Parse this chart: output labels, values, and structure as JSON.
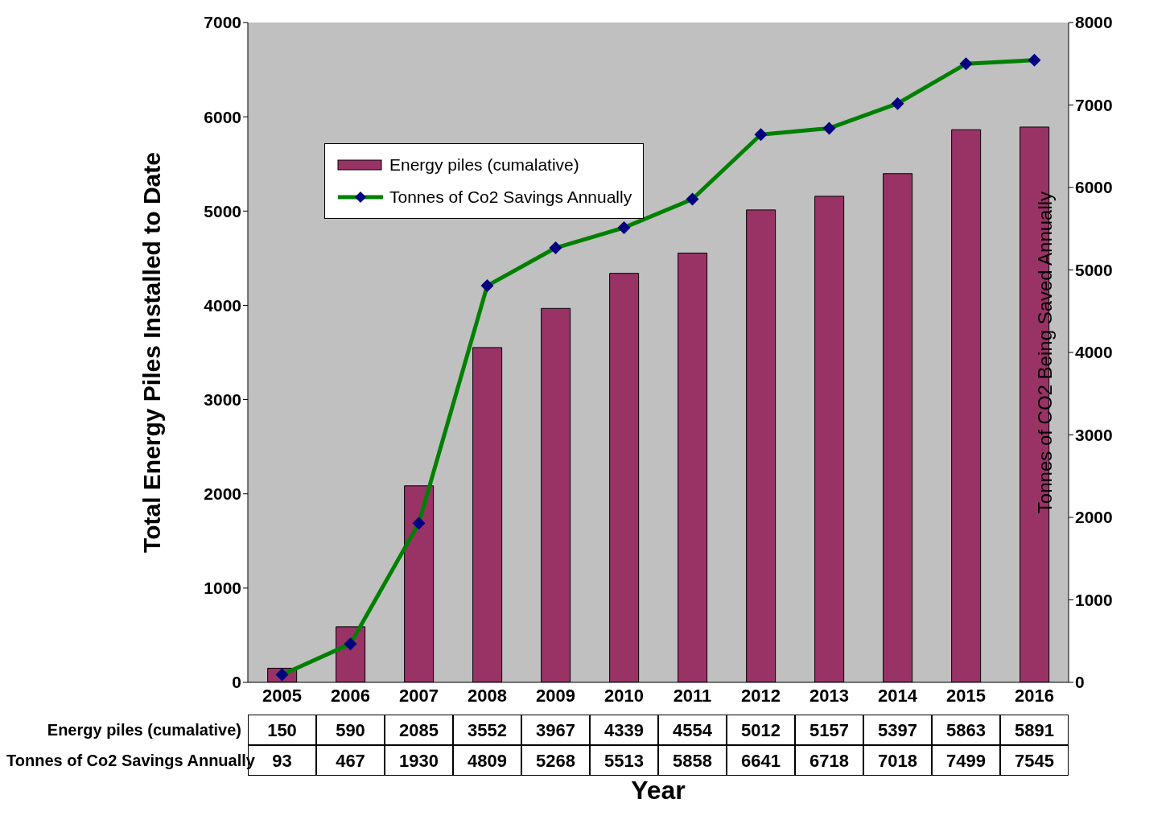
{
  "chart_data": {
    "type": "bar",
    "xlabel": "Year",
    "ylabel": "Total Energy Piles Installed to Date",
    "y2label": "Tonnes of CO2 Being Saved Annually",
    "categories": [
      "2005",
      "2006",
      "2007",
      "2008",
      "2009",
      "2010",
      "2011",
      "2012",
      "2013",
      "2014",
      "2015",
      "2016"
    ],
    "series": [
      {
        "name": "Energy piles (cumalative)",
        "color": "#993366",
        "values": [
          150,
          590,
          2085,
          3552,
          3967,
          4339,
          4554,
          5012,
          5157,
          5397,
          5863,
          5891
        ]
      },
      {
        "name": "Tonnes of Co2 Savings Annually",
        "type": "line",
        "axis": "y2",
        "color": "#008000",
        "marker": "diamond",
        "values": [
          93,
          467,
          1930,
          4809,
          5268,
          5513,
          5858,
          6641,
          6718,
          7018,
          7499,
          7545
        ]
      }
    ],
    "ylim": [
      0,
      7000
    ],
    "yticks": [
      0,
      1000,
      2000,
      3000,
      4000,
      5000,
      6000,
      7000
    ],
    "y2lim": [
      0,
      8000
    ],
    "y2ticks": [
      0,
      1000,
      2000,
      3000,
      4000,
      5000,
      6000,
      7000,
      8000
    ],
    "data_labels": true,
    "legend": "top left",
    "grid": false
  }
}
